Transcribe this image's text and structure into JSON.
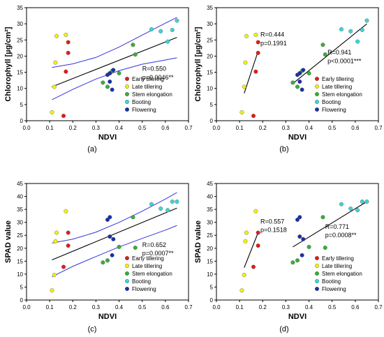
{
  "legend_entries": [
    {
      "label": "Early tillering",
      "color": "#e41a1c"
    },
    {
      "label": "Late tillering",
      "color": "#f4f10a"
    },
    {
      "label": "Stem elongation",
      "color": "#33b233"
    },
    {
      "label": "Booting",
      "color": "#3ad6d6"
    },
    {
      "label": "Flowering",
      "color": "#1a2fa8"
    }
  ],
  "chart_data": [
    {
      "type": "scatter",
      "panel_label": "(a)",
      "xlabel": "NDVI",
      "ylabel": "Chlorophyll [µg/cm²]",
      "xlim": [
        0.0,
        0.7
      ],
      "ylim": [
        0,
        35
      ],
      "xticks": [
        "0.0",
        "0.1",
        "0.2",
        "0.3",
        "0.4",
        "0.5",
        "0.6",
        "0.7"
      ],
      "yticks": [
        "0",
        "5",
        "10",
        "15",
        "20",
        "25",
        "30",
        "35"
      ],
      "grid": false,
      "legend_position": "bottom-right",
      "series": [
        {
          "name": "Early tillering",
          "x": [
            0.16,
            0.18,
            0.18,
            0.17
          ],
          "y": [
            1.5,
            21.0,
            24.3,
            15.2
          ]
        },
        {
          "name": "Late tillering",
          "x": [
            0.11,
            0.12,
            0.125,
            0.13,
            0.17
          ],
          "y": [
            2.6,
            10.5,
            18.0,
            26.2,
            26.6
          ]
        },
        {
          "name": "Stem elongation",
          "x": [
            0.33,
            0.35,
            0.36,
            0.37,
            0.4,
            0.46,
            0.47
          ],
          "y": [
            11.8,
            10.5,
            14.7,
            15.4,
            14.7,
            23.5,
            20.5
          ]
        },
        {
          "name": "Booting",
          "x": [
            0.54,
            0.58,
            0.61,
            0.63,
            0.65
          ],
          "y": [
            28.3,
            27.7,
            24.5,
            28.1,
            31.0
          ]
        },
        {
          "name": "Flowering",
          "x": [
            0.35,
            0.36,
            0.36,
            0.37,
            0.375
          ],
          "y": [
            14.2,
            12.1,
            14.7,
            9.6,
            15.7
          ]
        }
      ],
      "regression_lines": [
        {
          "x": [
            0.11,
            0.65
          ],
          "y": [
            10.5,
            25.8
          ]
        }
      ],
      "confidence_band": {
        "upper": {
          "x": [
            0.11,
            0.2,
            0.3,
            0.4,
            0.5,
            0.6,
            0.65
          ],
          "y": [
            16.5,
            17.6,
            19.6,
            22.8,
            26.5,
            30.2,
            32.0
          ]
        },
        "lower": {
          "x": [
            0.11,
            0.2,
            0.3,
            0.4,
            0.5,
            0.6,
            0.65
          ],
          "y": [
            6.5,
            9.7,
            12.9,
            15.5,
            17.5,
            18.8,
            19.5
          ]
        }
      },
      "annotations": [
        {
          "text": "R=0.550",
          "x": 0.5,
          "y": 15.5
        },
        {
          "text": "p=0.0046**",
          "x": 0.5,
          "y": 12.8
        }
      ]
    },
    {
      "type": "scatter",
      "panel_label": "(b)",
      "xlabel": "NDVI",
      "ylabel": "Chlorophyll [µg/cm²]",
      "xlim": [
        0.0,
        0.7
      ],
      "ylim": [
        0,
        35
      ],
      "xticks": [
        "0.0",
        "0.1",
        "0.2",
        "0.3",
        "0.4",
        "0.5",
        "0.6",
        "0.7"
      ],
      "yticks": [
        "0",
        "5",
        "10",
        "15",
        "20",
        "25",
        "30",
        "35"
      ],
      "grid": false,
      "legend_position": "bottom-right",
      "series": [
        {
          "name": "Early tillering",
          "x": [
            0.16,
            0.18,
            0.18,
            0.17
          ],
          "y": [
            1.5,
            21.0,
            24.3,
            15.2
          ]
        },
        {
          "name": "Late tillering",
          "x": [
            0.11,
            0.12,
            0.125,
            0.13,
            0.17
          ],
          "y": [
            2.6,
            10.5,
            18.0,
            26.2,
            26.6
          ]
        },
        {
          "name": "Stem elongation",
          "x": [
            0.33,
            0.35,
            0.36,
            0.37,
            0.4,
            0.46,
            0.47
          ],
          "y": [
            11.8,
            10.5,
            14.7,
            15.4,
            14.7,
            23.5,
            20.5
          ]
        },
        {
          "name": "Booting",
          "x": [
            0.54,
            0.58,
            0.61,
            0.63,
            0.65
          ],
          "y": [
            28.3,
            27.7,
            24.5,
            28.1,
            31.0
          ]
        },
        {
          "name": "Flowering",
          "x": [
            0.35,
            0.36,
            0.36,
            0.37,
            0.375
          ],
          "y": [
            14.2,
            12.1,
            14.7,
            9.6,
            15.7
          ]
        }
      ],
      "regression_lines": [
        {
          "x": [
            0.12,
            0.18
          ],
          "y": [
            8.5,
            21.5
          ]
        },
        {
          "x": [
            0.33,
            0.65
          ],
          "y": [
            11.5,
            30.0
          ]
        }
      ],
      "annotations": [
        {
          "text": "R=0.444",
          "x": 0.19,
          "y": 26.0
        },
        {
          "text": "p=0.1991",
          "x": 0.19,
          "y": 23.3
        },
        {
          "text": "R=0.941",
          "x": 0.48,
          "y": 20.5
        },
        {
          "text": "p<0.0001***",
          "x": 0.48,
          "y": 17.8
        }
      ]
    },
    {
      "type": "scatter",
      "panel_label": "(c)",
      "xlabel": "NDVI",
      "ylabel": "SPAD value",
      "xlim": [
        0.0,
        0.7
      ],
      "ylim": [
        0,
        45
      ],
      "xticks": [
        "0.0",
        "0.1",
        "0.2",
        "0.3",
        "0.4",
        "0.5",
        "0.6",
        "0.7"
      ],
      "yticks": [
        "0",
        "5",
        "10",
        "15",
        "20",
        "25",
        "30",
        "35",
        "40",
        "45"
      ],
      "grid": false,
      "legend_position": "bottom-right",
      "series": [
        {
          "name": "Early tillering",
          "x": [
            0.16,
            0.18,
            0.18
          ],
          "y": [
            12.8,
            21.0,
            26.0
          ]
        },
        {
          "name": "Late tillering",
          "x": [
            0.11,
            0.12,
            0.125,
            0.13,
            0.17
          ],
          "y": [
            3.7,
            9.7,
            22.7,
            26.0,
            34.3
          ]
        },
        {
          "name": "Stem elongation",
          "x": [
            0.33,
            0.35,
            0.4,
            0.46,
            0.47
          ],
          "y": [
            14.5,
            15.3,
            20.5,
            32.0,
            20.2
          ]
        },
        {
          "name": "Booting",
          "x": [
            0.54,
            0.58,
            0.61,
            0.63,
            0.65
          ],
          "y": [
            37.0,
            35.3,
            34.7,
            38.0,
            38.0
          ]
        },
        {
          "name": "Flowering",
          "x": [
            0.35,
            0.36,
            0.36,
            0.37,
            0.375
          ],
          "y": [
            31.0,
            32.0,
            24.5,
            17.3,
            23.5
          ]
        }
      ],
      "regression_lines": [
        {
          "x": [
            0.11,
            0.65
          ],
          "y": [
            15.5,
            35.5
          ]
        }
      ],
      "confidence_band": {
        "upper": {
          "x": [
            0.11,
            0.2,
            0.3,
            0.4,
            0.5,
            0.6,
            0.65
          ],
          "y": [
            22.0,
            23.5,
            26.2,
            30.0,
            34.3,
            39.0,
            41.5
          ]
        },
        "lower": {
          "x": [
            0.11,
            0.2,
            0.3,
            0.4,
            0.5,
            0.6,
            0.65
          ],
          "y": [
            9.0,
            13.0,
            16.8,
            20.5,
            23.8,
            27.0,
            28.8
          ]
        }
      },
      "annotations": [
        {
          "text": "R=0.652",
          "x": 0.5,
          "y": 20.5
        },
        {
          "text": "p=0.0007**",
          "x": 0.5,
          "y": 17.2
        }
      ]
    },
    {
      "type": "scatter",
      "panel_label": "(d)",
      "xlabel": "NDVI",
      "ylabel": "SPAD value",
      "xlim": [
        0.0,
        0.7
      ],
      "ylim": [
        0,
        45
      ],
      "xticks": [
        "0.0",
        "0.1",
        "0.2",
        "0.3",
        "0.4",
        "0.5",
        "0.6",
        "0.7"
      ],
      "yticks": [
        "0",
        "5",
        "10",
        "15",
        "20",
        "25",
        "30",
        "35",
        "40",
        "45"
      ],
      "grid": false,
      "legend_position": "bottom-right",
      "series": [
        {
          "name": "Early tillering",
          "x": [
            0.16,
            0.18,
            0.18
          ],
          "y": [
            12.8,
            21.0,
            26.0
          ]
        },
        {
          "name": "Late tillering",
          "x": [
            0.11,
            0.12,
            0.125,
            0.13,
            0.17
          ],
          "y": [
            3.7,
            9.7,
            22.7,
            26.0,
            34.3
          ]
        },
        {
          "name": "Stem elongation",
          "x": [
            0.33,
            0.35,
            0.4,
            0.46,
            0.47
          ],
          "y": [
            14.5,
            15.3,
            20.5,
            32.0,
            20.2
          ]
        },
        {
          "name": "Booting",
          "x": [
            0.54,
            0.58,
            0.61,
            0.63,
            0.65
          ],
          "y": [
            37.0,
            35.3,
            34.7,
            38.0,
            38.0
          ]
        },
        {
          "name": "Flowering",
          "x": [
            0.35,
            0.36,
            0.36,
            0.37,
            0.375
          ],
          "y": [
            31.0,
            32.0,
            24.5,
            17.3,
            23.5
          ]
        }
      ],
      "regression_lines": [
        {
          "x": [
            0.12,
            0.18
          ],
          "y": [
            12.5,
            26.0
          ]
        },
        {
          "x": [
            0.33,
            0.65
          ],
          "y": [
            20.5,
            38.0
          ]
        }
      ],
      "annotations": [
        {
          "text": "R=0.557",
          "x": 0.19,
          "y": 29.5
        },
        {
          "text": "p=0.1518",
          "x": 0.19,
          "y": 26.3
        },
        {
          "text": "R=0.771",
          "x": 0.47,
          "y": 27.5
        },
        {
          "text": "p=0.0008**",
          "x": 0.47,
          "y": 24.2
        }
      ]
    }
  ]
}
